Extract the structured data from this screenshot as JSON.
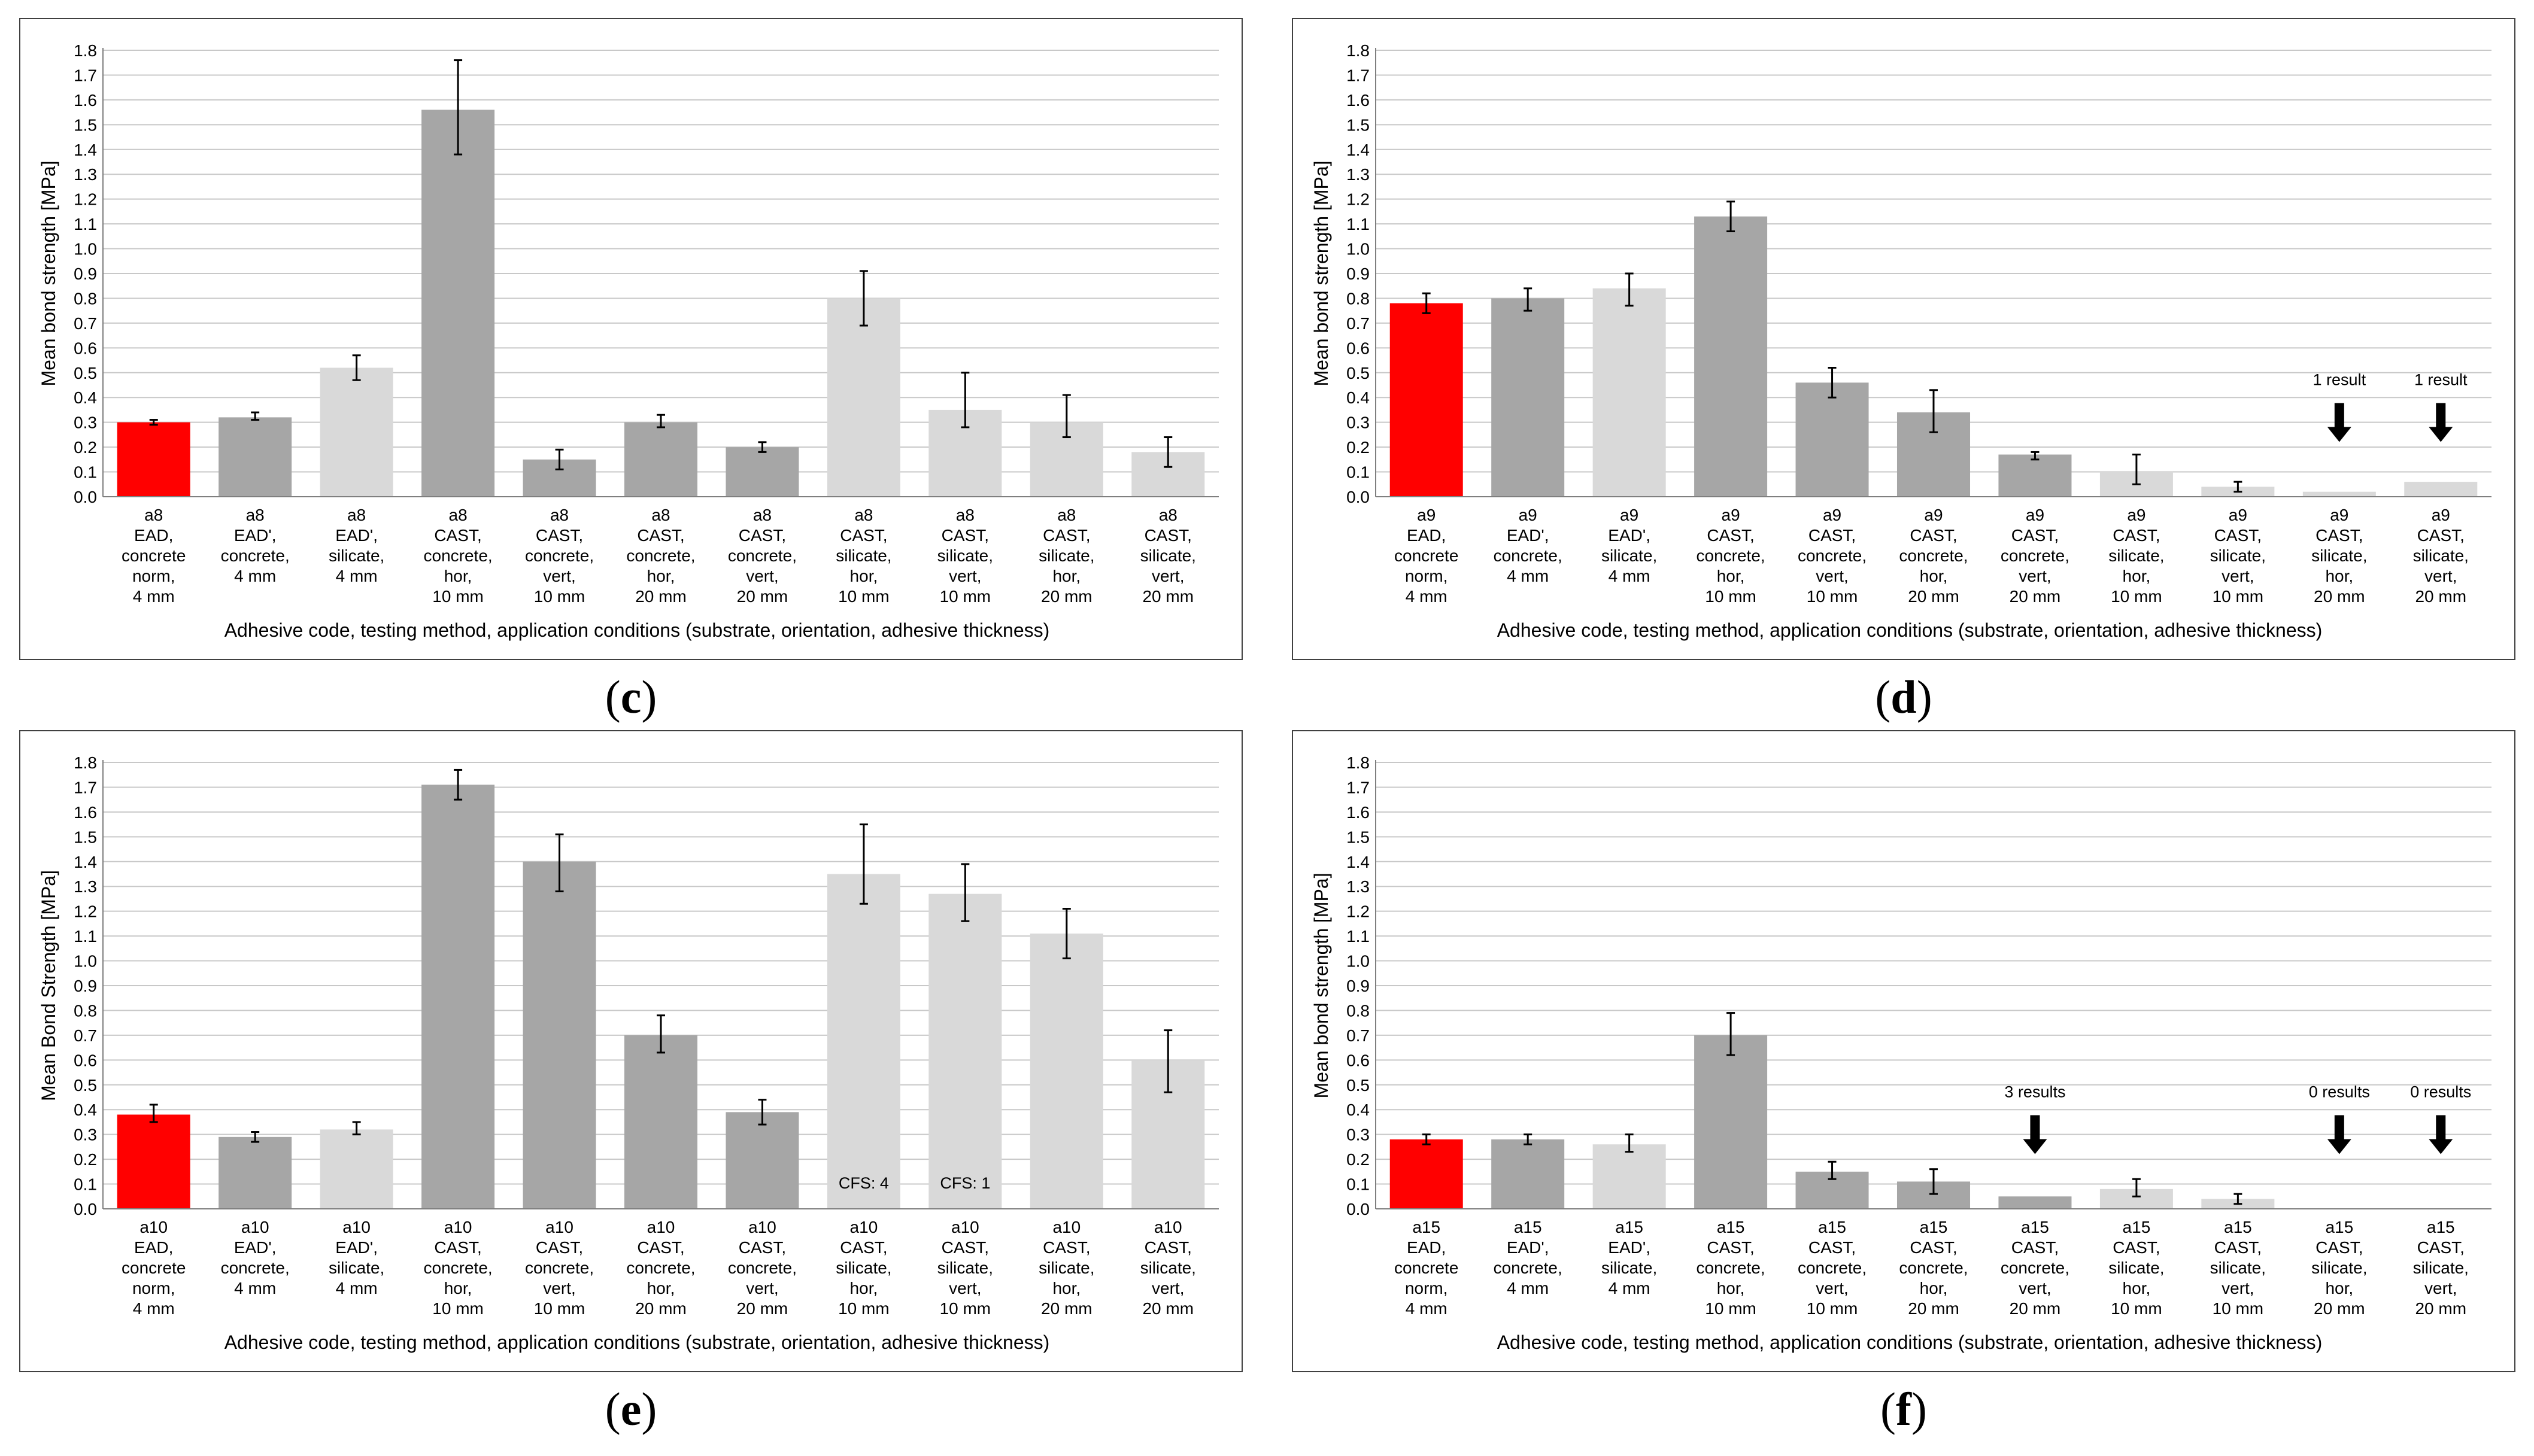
{
  "colors": {
    "red": "#ff0000",
    "dark": "#a6a6a6",
    "light": "#d9d9d9",
    "grid": "#c8c8c8",
    "axis": "#000000",
    "text": "#000000"
  },
  "chart_data": [
    {
      "panel": "c",
      "type": "bar",
      "ylabel": "Mean bond strength [MPa]",
      "xlabel": "Adhesive code, testing method, application conditions (substrate, orientation, adhesive thickness)",
      "ylim": [
        0,
        1.8
      ],
      "yticks": [
        "0.0",
        "0.1",
        "0.2",
        "0.3",
        "0.4",
        "0.5",
        "0.6",
        "0.7",
        "0.8",
        "0.9",
        "1.0",
        "1.1",
        "1.2",
        "1.3",
        "1.4",
        "1.5",
        "1.6",
        "1.7",
        "1.8"
      ],
      "categories": [
        [
          "a8",
          "EAD,",
          "concrete",
          "norm,",
          "4 mm"
        ],
        [
          "a8",
          "EAD',",
          "concrete,",
          "4 mm"
        ],
        [
          "a8",
          "EAD',",
          "silicate,",
          "4 mm"
        ],
        [
          "a8",
          "CAST,",
          "concrete,",
          "hor,",
          "10 mm"
        ],
        [
          "a8",
          "CAST,",
          "concrete,",
          "vert,",
          "10 mm"
        ],
        [
          "a8",
          "CAST,",
          "concrete,",
          "hor,",
          "20 mm"
        ],
        [
          "a8",
          "CAST,",
          "concrete,",
          "vert,",
          "20 mm"
        ],
        [
          "a8",
          "CAST,",
          "silicate,",
          "hor,",
          "10 mm"
        ],
        [
          "a8",
          "CAST,",
          "silicate,",
          "vert,",
          "10 mm"
        ],
        [
          "a8",
          "CAST,",
          "silicate,",
          "hor,",
          "20 mm"
        ],
        [
          "a8",
          "CAST,",
          "silicate,",
          "vert,",
          "20 mm"
        ]
      ],
      "values": [
        0.3,
        0.32,
        0.52,
        1.56,
        0.15,
        0.3,
        0.2,
        0.8,
        0.35,
        0.3,
        0.18
      ],
      "err_low": [
        0.29,
        0.31,
        0.47,
        1.38,
        0.11,
        0.28,
        0.18,
        0.69,
        0.28,
        0.24,
        0.12
      ],
      "err_high": [
        0.31,
        0.34,
        0.57,
        1.76,
        0.19,
        0.33,
        0.22,
        0.91,
        0.5,
        0.41,
        0.24
      ],
      "colors": [
        "red",
        "dark",
        "light",
        "dark",
        "dark",
        "dark",
        "dark",
        "light",
        "light",
        "light",
        "light"
      ],
      "annotations": [],
      "caption": "c"
    },
    {
      "panel": "d",
      "type": "bar",
      "ylabel": "Mean bond strength [MPa]",
      "xlabel": "Adhesive code, testing method, application conditions (substrate, orientation, adhesive thickness)",
      "ylim": [
        0,
        1.8
      ],
      "yticks": [
        "0.0",
        "0.1",
        "0.2",
        "0.3",
        "0.4",
        "0.5",
        "0.6",
        "0.7",
        "0.8",
        "0.9",
        "1.0",
        "1.1",
        "1.2",
        "1.3",
        "1.4",
        "1.5",
        "1.6",
        "1.7",
        "1.8"
      ],
      "categories": [
        [
          "a9",
          "EAD,",
          "concrete",
          "norm,",
          "4 mm"
        ],
        [
          "a9",
          "EAD',",
          "concrete,",
          "4 mm"
        ],
        [
          "a9",
          "EAD',",
          "silicate,",
          "4 mm"
        ],
        [
          "a9",
          "CAST,",
          "concrete,",
          "hor,",
          "10 mm"
        ],
        [
          "a9",
          "CAST,",
          "concrete,",
          "vert,",
          "10 mm"
        ],
        [
          "a9",
          "CAST,",
          "concrete,",
          "hor,",
          "20 mm"
        ],
        [
          "a9",
          "CAST,",
          "concrete,",
          "vert,",
          "20 mm"
        ],
        [
          "a9",
          "CAST,",
          "silicate,",
          "hor,",
          "10 mm"
        ],
        [
          "a9",
          "CAST,",
          "silicate,",
          "vert,",
          "10 mm"
        ],
        [
          "a9",
          "CAST,",
          "silicate,",
          "hor,",
          "20 mm"
        ],
        [
          "a9",
          "CAST,",
          "silicate,",
          "vert,",
          "20 mm"
        ]
      ],
      "values": [
        0.78,
        0.8,
        0.84,
        1.13,
        0.46,
        0.34,
        0.17,
        0.1,
        0.04,
        0.02,
        0.06
      ],
      "err_low": [
        0.74,
        0.75,
        0.77,
        1.07,
        0.4,
        0.26,
        0.15,
        0.05,
        0.02,
        null,
        null
      ],
      "err_high": [
        0.82,
        0.84,
        0.9,
        1.19,
        0.52,
        0.43,
        0.18,
        0.17,
        0.06,
        null,
        null
      ],
      "colors": [
        "red",
        "dark",
        "light",
        "dark",
        "dark",
        "dark",
        "dark",
        "light",
        "light",
        "light",
        "light"
      ],
      "annotations": [
        {
          "index": 9,
          "text": "1 result",
          "arrow": true
        },
        {
          "index": 10,
          "text": "1 result",
          "arrow": true
        }
      ],
      "caption": "d"
    },
    {
      "panel": "e",
      "type": "bar",
      "ylabel": "Mean Bond Strength [MPa]",
      "xlabel": "Adhesive code, testing method, application conditions (substrate, orientation, adhesive thickness)",
      "ylim": [
        0,
        1.8
      ],
      "yticks": [
        "0.0",
        "0.1",
        "0.2",
        "0.3",
        "0.4",
        "0.5",
        "0.6",
        "0.7",
        "0.8",
        "0.9",
        "1.0",
        "1.1",
        "1.2",
        "1.3",
        "1.4",
        "1.5",
        "1.6",
        "1.7",
        "1.8"
      ],
      "categories": [
        [
          "a10",
          "EAD,",
          "concrete",
          "norm,",
          "4 mm"
        ],
        [
          "a10",
          "EAD',",
          "concrete,",
          "4 mm"
        ],
        [
          "a10",
          "EAD',",
          "silicate,",
          "4 mm"
        ],
        [
          "a10",
          "CAST,",
          "concrete,",
          "hor,",
          "10 mm"
        ],
        [
          "a10",
          "CAST,",
          "concrete,",
          "vert,",
          "10 mm"
        ],
        [
          "a10",
          "CAST,",
          "concrete,",
          "hor,",
          "20 mm"
        ],
        [
          "a10",
          "CAST,",
          "concrete,",
          "vert,",
          "20 mm"
        ],
        [
          "a10",
          "CAST,",
          "silicate,",
          "hor,",
          "10 mm"
        ],
        [
          "a10",
          "CAST,",
          "silicate,",
          "vert,",
          "10 mm"
        ],
        [
          "a10",
          "CAST,",
          "silicate,",
          "hor,",
          "20 mm"
        ],
        [
          "a10",
          "CAST,",
          "silicate,",
          "vert,",
          "20 mm"
        ]
      ],
      "values": [
        0.38,
        0.29,
        0.32,
        1.71,
        1.4,
        0.7,
        0.39,
        1.35,
        1.27,
        1.11,
        0.6
      ],
      "err_low": [
        0.35,
        0.27,
        0.3,
        1.65,
        1.28,
        0.63,
        0.34,
        1.23,
        1.16,
        1.01,
        0.47
      ],
      "err_high": [
        0.42,
        0.31,
        0.35,
        1.77,
        1.51,
        0.78,
        0.44,
        1.55,
        1.39,
        1.21,
        0.72
      ],
      "colors": [
        "red",
        "dark",
        "light",
        "dark",
        "dark",
        "dark",
        "dark",
        "light",
        "light",
        "light",
        "light"
      ],
      "annotations": [
        {
          "index": 7,
          "text": "CFS: 4",
          "inside": true
        },
        {
          "index": 8,
          "text": "CFS: 1",
          "inside": true
        }
      ],
      "caption": "e"
    },
    {
      "panel": "f",
      "type": "bar",
      "ylabel": "Mean bond strength [MPa]",
      "xlabel": "Adhesive code, testing method, application conditions (substrate, orientation, adhesive thickness)",
      "ylim": [
        0,
        1.8
      ],
      "yticks": [
        "0.0",
        "0.1",
        "0.2",
        "0.3",
        "0.4",
        "0.5",
        "0.6",
        "0.7",
        "0.8",
        "0.9",
        "1.0",
        "1.1",
        "1.2",
        "1.3",
        "1.4",
        "1.5",
        "1.6",
        "1.7",
        "1.8"
      ],
      "categories": [
        [
          "a15",
          "EAD,",
          "concrete",
          "norm,",
          "4 mm"
        ],
        [
          "a15",
          "EAD',",
          "concrete,",
          "4 mm"
        ],
        [
          "a15",
          "EAD',",
          "silicate,",
          "4 mm"
        ],
        [
          "a15",
          "CAST,",
          "concrete,",
          "hor,",
          "10 mm"
        ],
        [
          "a15",
          "CAST,",
          "concrete,",
          "vert,",
          "10 mm"
        ],
        [
          "a15",
          "CAST,",
          "concrete,",
          "hor,",
          "20 mm"
        ],
        [
          "a15",
          "CAST,",
          "concrete,",
          "vert,",
          "20 mm"
        ],
        [
          "a15",
          "CAST,",
          "silicate,",
          "hor,",
          "10 mm"
        ],
        [
          "a15",
          "CAST,",
          "silicate,",
          "vert,",
          "10 mm"
        ],
        [
          "a15",
          "CAST,",
          "silicate,",
          "hor,",
          "20 mm"
        ],
        [
          "a15",
          "CAST,",
          "silicate,",
          "vert,",
          "20 mm"
        ]
      ],
      "values": [
        0.28,
        0.28,
        0.26,
        0.7,
        0.15,
        0.11,
        0.05,
        0.08,
        0.04,
        0,
        0
      ],
      "err_low": [
        0.26,
        0.26,
        0.23,
        0.62,
        0.12,
        0.06,
        null,
        0.05,
        0.02,
        null,
        null
      ],
      "err_high": [
        0.3,
        0.3,
        0.3,
        0.79,
        0.19,
        0.16,
        null,
        0.12,
        0.06,
        null,
        null
      ],
      "colors": [
        "red",
        "dark",
        "light",
        "dark",
        "dark",
        "dark",
        "dark",
        "light",
        "light",
        "light",
        "light"
      ],
      "annotations": [
        {
          "index": 6,
          "text": "3 results",
          "arrow": true
        },
        {
          "index": 9,
          "text": "0 results",
          "arrow": true
        },
        {
          "index": 10,
          "text": "0 results",
          "arrow": true
        }
      ],
      "caption": "f"
    }
  ]
}
